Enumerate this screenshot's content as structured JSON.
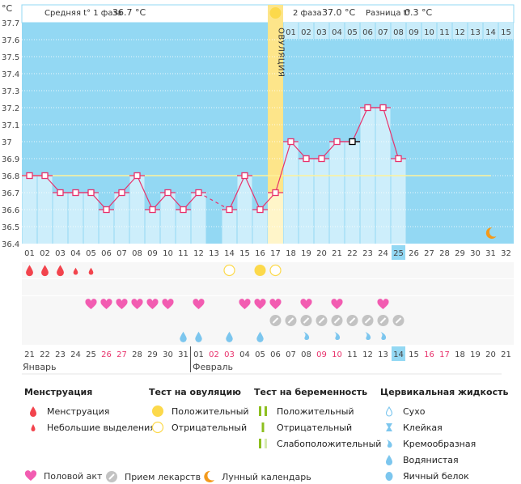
{
  "header": {
    "unit": "°C",
    "phase1_label": "Средняя t° 1 фаза",
    "phase1_value": "36.7 °C",
    "phase2_label": "2 фаза",
    "phase2_value": "37.0 °C",
    "diff_label": "Разница t°",
    "diff_value": "0.3 °C",
    "ovulation_label": "ОВУЛЯЦИЯ"
  },
  "chart_data": {
    "type": "line",
    "title": "",
    "ylabel": "°C",
    "ylim": [
      36.4,
      37.7
    ],
    "yticks": [
      "37.7",
      "37.6",
      "37.5",
      "37.4",
      "37.3",
      "37.2",
      "37.1",
      "37",
      "36.9",
      "36.8",
      "36.7",
      "36.6",
      "36.5",
      "36.4"
    ],
    "cycle_days": [
      "01",
      "02",
      "03",
      "04",
      "05",
      "06",
      "07",
      "08",
      "09",
      "10",
      "11",
      "12",
      "13",
      "14",
      "15",
      "16",
      "17",
      "18",
      "19",
      "20",
      "21",
      "22",
      "23",
      "24",
      "25",
      "26",
      "27",
      "28",
      "29",
      "30",
      "31",
      "32"
    ],
    "second_phase_days": [
      "01",
      "02",
      "03",
      "04",
      "05",
      "06",
      "07",
      "08",
      "09",
      "10",
      "11",
      "12",
      "13",
      "14",
      "15"
    ],
    "temperatures": [
      36.8,
      36.8,
      36.7,
      36.7,
      36.7,
      36.6,
      36.7,
      36.8,
      36.6,
      36.7,
      36.6,
      36.7,
      null,
      36.6,
      36.8,
      36.6,
      36.7,
      37.0,
      36.9,
      36.9,
      37.0,
      37.0,
      37.2,
      37.2,
      36.9
    ],
    "coverline": 36.8,
    "ovulation_day": 17,
    "current_day": 25,
    "selected_day": 22
  },
  "calendar": {
    "dates": [
      "21",
      "22",
      "23",
      "24",
      "25",
      "26",
      "27",
      "28",
      "29",
      "30",
      "31",
      "01",
      "02",
      "03",
      "04",
      "05",
      "06",
      "07",
      "08",
      "09",
      "10",
      "11",
      "12",
      "13",
      "14",
      "15",
      "16",
      "17",
      "18",
      "19",
      "20",
      "21"
    ],
    "weekend_idx": [
      5,
      6,
      12,
      13,
      19,
      20,
      26,
      27
    ],
    "today_idx": 24,
    "month1": "Январь",
    "month2": "Февраль"
  },
  "marks": {
    "menstruation": [
      1,
      2,
      3
    ],
    "spotting": [
      4,
      5
    ],
    "ovulation_negative": [
      14,
      17
    ],
    "ovulation_positive": [
      16
    ],
    "intercourse": [
      5,
      6,
      7,
      8,
      9,
      10,
      12,
      15,
      16,
      17,
      19,
      21,
      24
    ],
    "medication": [
      17,
      18,
      19,
      20,
      21,
      22,
      23,
      24,
      25
    ],
    "cervical_watery": [
      11,
      12,
      14,
      16
    ],
    "cervical_creamy": [
      19,
      21,
      23,
      24
    ],
    "moon": [
      31
    ]
  },
  "legend": {
    "menstruation": {
      "title": "Менструация",
      "items": [
        "Менструация",
        "Небольшие выделения"
      ]
    },
    "ovulation_test": {
      "title": "Тест на овуляцию",
      "items": [
        "Положительный",
        "Отрицательный"
      ]
    },
    "pregnancy_test": {
      "title": "Тест на беременность",
      "items": [
        "Положительный",
        "Отрицательный",
        "Слабоположительный"
      ]
    },
    "cervical": {
      "title": "Цервикальная жидкость",
      "items": [
        "Сухо",
        "Клейкая",
        "Кремообразная",
        "Водянистая",
        "Яичный белок"
      ]
    },
    "bottom": [
      "Половой акт",
      "Прием лекарств",
      "Лунный календарь"
    ]
  },
  "colors": {
    "chart_bg": "#93d8f3",
    "bar_fill": "#cdeefb",
    "line": "#e8316b",
    "ovulation": "#fde58a",
    "menstruation": "#f2444d",
    "heart": "#f25cb1",
    "pill": "#c3c3c3",
    "fluid": "#7cc6ee",
    "moon": "#f39a1c",
    "weekend": "#e8316b",
    "green": "#8dbf1f"
  }
}
